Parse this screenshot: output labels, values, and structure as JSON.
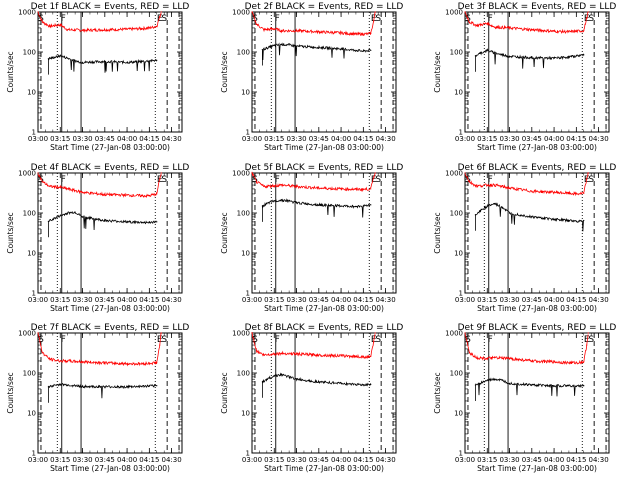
{
  "figure": {
    "x_axis_label": "Start Time (27-Jan-08 03:00:00)",
    "y_axis_label": "Counts/sec",
    "x_tick_labels": [
      "03:00",
      "03:15",
      "03:30",
      "03:45",
      "04:00",
      "04:15",
      "04:30"
    ],
    "y_tick_labels": [
      "1",
      "10",
      "100",
      "1000"
    ],
    "series_colors": {
      "events": "#000000",
      "lld": "#ff0000"
    }
  },
  "chart_data": [
    {
      "type": "line",
      "title": "Det 1f BLACK = Events, RED = LLD",
      "xlim": [
        "03:00",
        "04:37"
      ],
      "ylim": [
        1,
        1000
      ],
      "yscale": "log",
      "markers": [
        {
          "label": "S",
          "time": "03:02"
        },
        {
          "label": "F",
          "time": "03:17"
        },
        {
          "label": "E",
          "time": "04:22"
        },
        {
          "label": "S",
          "time": "04:25"
        }
      ],
      "vlines": {
        "dashed": [
          "03:02",
          "04:27",
          "04:35"
        ],
        "dotted": [
          "03:13",
          "04:19"
        ],
        "solid": [
          "03:16",
          "03:29"
        ]
      },
      "series": [
        {
          "key": "lld",
          "x": [
            "03:00",
            "03:03",
            "03:08",
            "03:15",
            "03:20",
            "03:30",
            "03:45",
            "04:00",
            "04:10",
            "04:15",
            "04:20",
            "04:22",
            "04:23"
          ],
          "y": [
            1000,
            560,
            440,
            480,
            360,
            350,
            360,
            370,
            385,
            400,
            440,
            750,
            1000
          ]
        },
        {
          "key": "events",
          "x": [
            "03:07",
            "03:10",
            "03:15",
            "03:20",
            "03:25",
            "03:30",
            "03:45",
            "04:00",
            "04:10",
            "04:15",
            "04:20"
          ],
          "y": [
            68,
            72,
            80,
            70,
            60,
            55,
            58,
            55,
            58,
            60,
            62
          ]
        }
      ]
    },
    {
      "type": "line",
      "title": "Det 2f BLACK = Events, RED = LLD",
      "xlim": [
        "03:00",
        "04:37"
      ],
      "ylim": [
        1,
        1000
      ],
      "yscale": "log",
      "markers": [
        {
          "label": "S",
          "time": "03:02"
        },
        {
          "label": "F",
          "time": "03:17"
        },
        {
          "label": "E",
          "time": "04:22"
        },
        {
          "label": "S",
          "time": "04:25"
        }
      ],
      "vlines": {
        "dashed": [
          "03:02",
          "04:27",
          "04:35"
        ],
        "dotted": [
          "03:13",
          "04:19"
        ],
        "solid": [
          "03:16",
          "03:29"
        ]
      },
      "series": [
        {
          "key": "lld",
          "x": [
            "03:00",
            "03:03",
            "03:08",
            "03:15",
            "03:20",
            "03:30",
            "03:45",
            "04:00",
            "04:10",
            "04:15",
            "04:20",
            "04:22",
            "04:23"
          ],
          "y": [
            1000,
            500,
            360,
            380,
            340,
            340,
            320,
            300,
            280,
            280,
            290,
            600,
            1000
          ]
        },
        {
          "key": "events",
          "x": [
            "03:07",
            "03:10",
            "03:15",
            "03:20",
            "03:25",
            "03:30",
            "03:45",
            "04:00",
            "04:10",
            "04:15",
            "04:20"
          ],
          "y": [
            115,
            125,
            145,
            155,
            150,
            140,
            130,
            120,
            110,
            105,
            110
          ]
        }
      ]
    },
    {
      "type": "line",
      "title": "Det 3f BLACK = Events, RED = LLD",
      "xlim": [
        "03:00",
        "04:37"
      ],
      "ylim": [
        1,
        1000
      ],
      "yscale": "log",
      "markers": [
        {
          "label": "S",
          "time": "03:02"
        },
        {
          "label": "F",
          "time": "03:17"
        },
        {
          "label": "E",
          "time": "04:22"
        },
        {
          "label": "S",
          "time": "04:25"
        }
      ],
      "vlines": {
        "dashed": [
          "03:02",
          "04:27",
          "04:35"
        ],
        "dotted": [
          "03:13",
          "04:19"
        ],
        "solid": [
          "03:16",
          "03:29"
        ]
      },
      "series": [
        {
          "key": "lld",
          "x": [
            "03:00",
            "03:03",
            "03:08",
            "03:15",
            "03:20",
            "03:30",
            "03:45",
            "04:00",
            "04:10",
            "04:15",
            "04:20",
            "04:22",
            "04:23"
          ],
          "y": [
            1000,
            560,
            460,
            520,
            420,
            400,
            360,
            330,
            320,
            330,
            340,
            700,
            1000
          ]
        },
        {
          "key": "events",
          "x": [
            "03:07",
            "03:10",
            "03:15",
            "03:20",
            "03:25",
            "03:30",
            "03:45",
            "04:00",
            "04:10",
            "04:15",
            "04:20"
          ],
          "y": [
            80,
            92,
            110,
            95,
            85,
            78,
            72,
            70,
            75,
            80,
            85
          ]
        }
      ]
    },
    {
      "type": "line",
      "title": "Det 4f BLACK = Events, RED = LLD",
      "xlim": [
        "03:00",
        "04:37"
      ],
      "ylim": [
        1,
        1000
      ],
      "yscale": "log",
      "markers": [
        {
          "label": "S",
          "time": "03:02"
        },
        {
          "label": "F",
          "time": "03:17"
        },
        {
          "label": "E",
          "time": "04:22"
        },
        {
          "label": "S",
          "time": "04:25"
        }
      ],
      "vlines": {
        "dashed": [
          "03:02",
          "04:27",
          "04:35"
        ],
        "dotted": [
          "03:13",
          "04:19"
        ],
        "solid": [
          "03:16",
          "03:29"
        ]
      },
      "series": [
        {
          "key": "lld",
          "x": [
            "03:00",
            "03:03",
            "03:08",
            "03:15",
            "03:20",
            "03:30",
            "03:45",
            "04:00",
            "04:10",
            "04:15",
            "04:20",
            "04:22",
            "04:23"
          ],
          "y": [
            1000,
            600,
            460,
            440,
            400,
            330,
            290,
            280,
            270,
            270,
            300,
            700,
            1000
          ]
        },
        {
          "key": "events",
          "x": [
            "03:07",
            "03:10",
            "03:15",
            "03:20",
            "03:25",
            "03:30",
            "03:45",
            "04:00",
            "04:10",
            "04:15",
            "04:20"
          ],
          "y": [
            62,
            70,
            85,
            100,
            105,
            80,
            65,
            60,
            58,
            58,
            60
          ]
        }
      ]
    },
    {
      "type": "line",
      "title": "Det 5f BLACK = Events, RED = LLD",
      "xlim": [
        "03:00",
        "04:37"
      ],
      "ylim": [
        1,
        1000
      ],
      "yscale": "log",
      "markers": [
        {
          "label": "S",
          "time": "03:02"
        },
        {
          "label": "F",
          "time": "03:17"
        },
        {
          "label": "E",
          "time": "04:22"
        },
        {
          "label": "S",
          "time": "04:25"
        }
      ],
      "vlines": {
        "dashed": [
          "03:02",
          "04:27",
          "04:35"
        ],
        "dotted": [
          "03:13",
          "04:19"
        ],
        "solid": [
          "03:16",
          "03:29"
        ]
      },
      "series": [
        {
          "key": "lld",
          "x": [
            "03:00",
            "03:03",
            "03:08",
            "03:15",
            "03:20",
            "03:30",
            "03:45",
            "04:00",
            "04:10",
            "04:15",
            "04:20",
            "04:22",
            "04:23"
          ],
          "y": [
            1000,
            600,
            460,
            480,
            500,
            460,
            420,
            400,
            390,
            390,
            400,
            800,
            1000
          ]
        },
        {
          "key": "events",
          "x": [
            "03:07",
            "03:10",
            "03:15",
            "03:20",
            "03:25",
            "03:30",
            "03:45",
            "04:00",
            "04:10",
            "04:15",
            "04:20"
          ],
          "y": [
            150,
            170,
            200,
            210,
            200,
            180,
            160,
            150,
            145,
            150,
            160
          ]
        }
      ]
    },
    {
      "type": "line",
      "title": "Det 6f BLACK = Events, RED = LLD",
      "xlim": [
        "03:00",
        "04:37"
      ],
      "ylim": [
        1,
        1000
      ],
      "yscale": "log",
      "markers": [
        {
          "label": "S",
          "time": "03:02"
        },
        {
          "label": "F",
          "time": "03:17"
        },
        {
          "label": "E",
          "time": "04:22"
        },
        {
          "label": "S",
          "time": "04:25"
        }
      ],
      "vlines": {
        "dashed": [
          "03:02",
          "04:27",
          "04:35"
        ],
        "dotted": [
          "03:13",
          "04:19"
        ],
        "solid": [
          "03:16",
          "03:29"
        ]
      },
      "series": [
        {
          "key": "lld",
          "x": [
            "03:00",
            "03:03",
            "03:08",
            "03:15",
            "03:20",
            "03:30",
            "03:45",
            "04:00",
            "04:10",
            "04:15",
            "04:20",
            "04:22",
            "04:23"
          ],
          "y": [
            1000,
            600,
            470,
            500,
            500,
            420,
            350,
            330,
            310,
            300,
            310,
            700,
            1000
          ]
        },
        {
          "key": "events",
          "x": [
            "03:07",
            "03:10",
            "03:15",
            "03:20",
            "03:25",
            "03:30",
            "03:45",
            "04:00",
            "04:10",
            "04:15",
            "04:20"
          ],
          "y": [
            90,
            110,
            150,
            170,
            140,
            100,
            80,
            70,
            65,
            62,
            65
          ]
        }
      ]
    },
    {
      "type": "line",
      "title": "Det 7f BLACK = Events, RED = LLD",
      "xlim": [
        "03:00",
        "04:37"
      ],
      "ylim": [
        1,
        1000
      ],
      "yscale": "log",
      "markers": [
        {
          "label": "S",
          "time": "03:02"
        },
        {
          "label": "F",
          "time": "03:17"
        },
        {
          "label": "E",
          "time": "04:22"
        },
        {
          "label": "S",
          "time": "04:25"
        }
      ],
      "vlines": {
        "dashed": [
          "03:02",
          "04:27",
          "04:35"
        ],
        "dotted": [
          "03:13",
          "04:19"
        ],
        "solid": [
          "03:16",
          "03:29"
        ]
      },
      "series": [
        {
          "key": "lld",
          "x": [
            "03:00",
            "03:03",
            "03:08",
            "03:15",
            "03:20",
            "03:30",
            "03:45",
            "04:00",
            "04:10",
            "04:15",
            "04:20",
            "04:22",
            "04:23"
          ],
          "y": [
            1000,
            320,
            220,
            200,
            200,
            190,
            180,
            170,
            170,
            175,
            180,
            500,
            1000
          ]
        },
        {
          "key": "events",
          "x": [
            "03:07",
            "03:10",
            "03:15",
            "03:20",
            "03:25",
            "03:30",
            "03:45",
            "04:00",
            "04:10",
            "04:15",
            "04:20"
          ],
          "y": [
            45,
            48,
            52,
            50,
            48,
            46,
            45,
            45,
            46,
            47,
            48
          ]
        }
      ]
    },
    {
      "type": "line",
      "title": "Det 8f BLACK = Events, RED = LLD",
      "xlim": [
        "03:00",
        "04:37"
      ],
      "ylim": [
        1,
        1000
      ],
      "yscale": "log",
      "markers": [
        {
          "label": "S",
          "time": "03:02"
        },
        {
          "label": "F",
          "time": "03:17"
        },
        {
          "label": "E",
          "time": "04:22"
        },
        {
          "label": "S",
          "time": "04:25"
        }
      ],
      "vlines": {
        "dashed": [
          "03:02",
          "04:27",
          "04:35"
        ],
        "dotted": [
          "03:13",
          "04:19"
        ],
        "solid": [
          "03:16",
          "03:29"
        ]
      },
      "series": [
        {
          "key": "lld",
          "x": [
            "03:00",
            "03:03",
            "03:08",
            "03:15",
            "03:20",
            "03:30",
            "03:45",
            "04:00",
            "04:10",
            "04:15",
            "04:20",
            "04:22",
            "04:23"
          ],
          "y": [
            1000,
            360,
            280,
            300,
            310,
            300,
            280,
            270,
            260,
            250,
            260,
            600,
            1000
          ]
        },
        {
          "key": "events",
          "x": [
            "03:07",
            "03:10",
            "03:15",
            "03:20",
            "03:25",
            "03:30",
            "03:45",
            "04:00",
            "04:10",
            "04:15",
            "04:20"
          ],
          "y": [
            60,
            70,
            85,
            90,
            80,
            70,
            60,
            55,
            52,
            50,
            52
          ]
        }
      ]
    },
    {
      "type": "line",
      "title": "Det 9f BLACK = Events, RED = LLD",
      "xlim": [
        "03:00",
        "04:37"
      ],
      "ylim": [
        1,
        1000
      ],
      "yscale": "log",
      "markers": [
        {
          "label": "S",
          "time": "03:02"
        },
        {
          "label": "F",
          "time": "03:17"
        },
        {
          "label": "E",
          "time": "04:22"
        },
        {
          "label": "S",
          "time": "04:25"
        }
      ],
      "vlines": {
        "dashed": [
          "03:02",
          "04:27",
          "04:35"
        ],
        "dotted": [
          "03:13",
          "04:19"
        ],
        "solid": [
          "03:16",
          "03:29"
        ]
      },
      "series": [
        {
          "key": "lld",
          "x": [
            "03:00",
            "03:03",
            "03:08",
            "03:15",
            "03:20",
            "03:30",
            "03:45",
            "04:00",
            "04:10",
            "04:15",
            "04:20",
            "04:22",
            "04:23"
          ],
          "y": [
            1000,
            320,
            240,
            230,
            240,
            230,
            200,
            190,
            180,
            180,
            190,
            500,
            1000
          ]
        },
        {
          "key": "events",
          "x": [
            "03:07",
            "03:10",
            "03:15",
            "03:20",
            "03:25",
            "03:30",
            "03:45",
            "04:00",
            "04:10",
            "04:15",
            "04:20"
          ],
          "y": [
            50,
            55,
            65,
            70,
            65,
            55,
            50,
            48,
            48,
            47,
            48
          ]
        }
      ]
    }
  ]
}
